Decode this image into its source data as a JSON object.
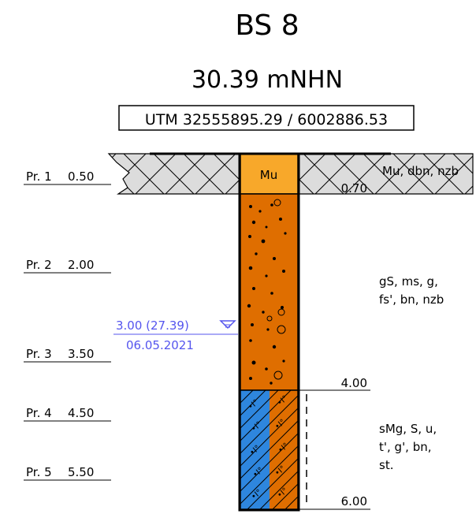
{
  "title": "BS 8",
  "elevation": "30.39 mNHN",
  "coordinates": "UTM 32555895.29 / 6002886.53",
  "samples": [
    {
      "label": "Pr. 1",
      "depth": "0.50"
    },
    {
      "label": "Pr. 2",
      "depth": "2.00"
    },
    {
      "label": "Pr. 3",
      "depth": "3.50"
    },
    {
      "label": "Pr. 4",
      "depth": "4.50"
    },
    {
      "label": "Pr. 5",
      "depth": "5.50"
    }
  ],
  "layers": [
    {
      "code": "Mu",
      "bottom": "0.70",
      "description": [
        "Mu, dbn, nzb"
      ],
      "color": "#F8A82A"
    },
    {
      "code": "",
      "bottom": "4.00",
      "description": [
        "gS, ms, g,",
        "fs', bn, nzb"
      ],
      "color": "#DF6E00"
    },
    {
      "code": "",
      "bottom": "6.00",
      "description": [
        "sMg, S, u,",
        "t', g', bn,",
        "st."
      ],
      "color_left": "#2E86DE",
      "color_right": "#DF6E00"
    }
  ],
  "groundwater": {
    "depth_label": "3.00 (27.39)",
    "date": "06.05.2021",
    "color": "#5555EE"
  },
  "colors": {
    "fill_hatch": "#DCDCDC",
    "line": "#000000"
  }
}
